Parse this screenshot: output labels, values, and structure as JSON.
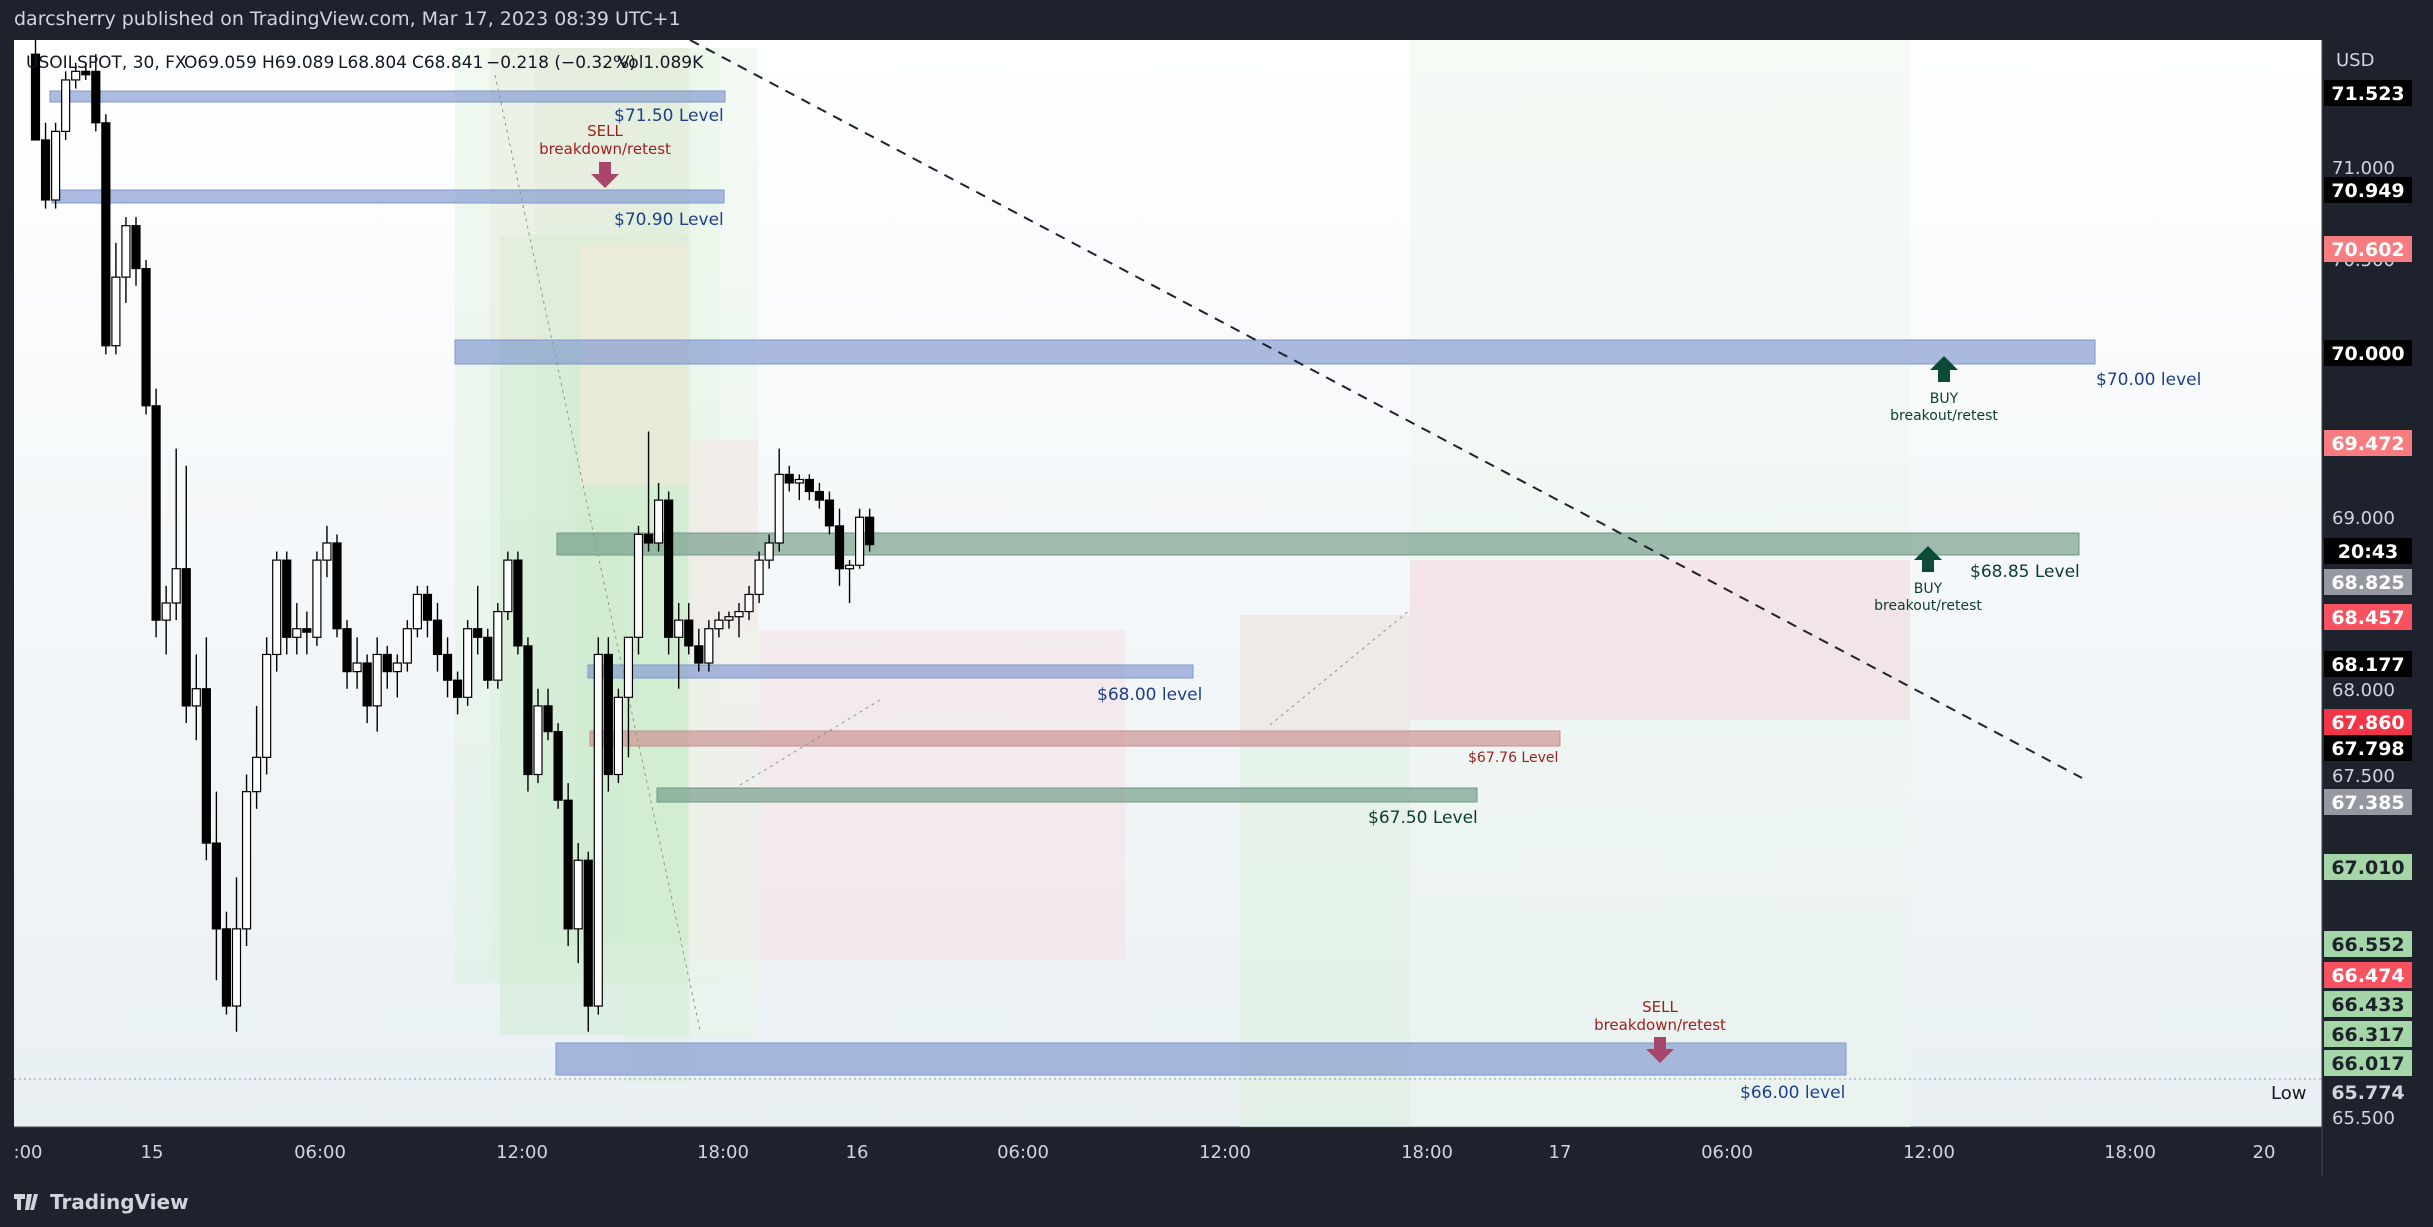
{
  "header": {
    "published_text": "darcsherry published on TradingView.com, Mar 17, 2023 08:39 UTC+1",
    "legend_symbol": "USOILSPOT, 30, FX",
    "legend_o": "O69.059",
    "legend_h": "H69.089",
    "legend_l": "L68.804",
    "legend_c": "C68.841",
    "legend_change": "−0.218 (−0.32%)",
    "legend_vol": "Vol1.089K"
  },
  "footer": {
    "brand": "TradingView"
  },
  "axis": {
    "currency": "USD",
    "low_label": "Low",
    "price_ticks": [
      "71.000",
      "70.500",
      "69.000",
      "68.000",
      "67.500",
      "65.500"
    ],
    "time_ticks": [
      ":00",
      "15",
      "06:00",
      "12:00",
      "18:00",
      "16",
      "06:00",
      "12:00",
      "18:00",
      "17",
      "06:00",
      "12:00",
      "18:00",
      "20"
    ]
  },
  "colors": {
    "background": "#ffffff",
    "axis_bg": "#1e222d",
    "blue_zone": "#7f97cf",
    "green_zone": "#6f9984",
    "red_zone": "#c98e8e",
    "label_blue": "#1d3f8b",
    "label_green": "#0d3d2c",
    "label_red": "#9d1e1e",
    "buy_arrow": "#0d4a38",
    "sell_arrow": "#a8476b"
  },
  "annotations": {
    "lvl_7150": "$71.50 Level",
    "lvl_7090": "$70.90 Level",
    "lvl_7000": "$70.00 level",
    "lvl_6885": "$68.85 Level",
    "lvl_6800": "$68.00 level",
    "lvl_6776": "$67.76 Level",
    "lvl_6750": "$67.50 Level",
    "lvl_6600": "$66.00 level",
    "sell1_a": "SELL",
    "sell1_b": "breakdown/retest",
    "sell2_a": "SELL",
    "sell2_b": "breakdown/retest",
    "buy1_a": "BUY",
    "buy1_b": "breakout/retest",
    "buy2_a": "BUY",
    "buy2_b": "breakout/retest"
  },
  "chart_data": {
    "type": "candlestick",
    "symbol": "USOILSPOT",
    "interval": "30",
    "ylim": [
      65.5,
      71.6
    ],
    "grid": false,
    "current_price": 68.841,
    "countdown": "20:43",
    "price_badges": [
      {
        "value": "71.523",
        "bg": "#000000",
        "fg": "#ffffff"
      },
      {
        "value": "70.949",
        "bg": "#000000",
        "fg": "#ffffff"
      },
      {
        "value": "70.602",
        "bg": "#f77c80",
        "fg": "#ffffff"
      },
      {
        "value": "70.000",
        "bg": "#000000",
        "fg": "#ffffff"
      },
      {
        "value": "69.472",
        "bg": "#f77c80",
        "fg": "#ffffff"
      },
      {
        "value": "68.825",
        "bg": "#9598a1",
        "fg": "#ffffff"
      },
      {
        "value": "68.457",
        "bg": "#f7525f",
        "fg": "#ffffff"
      },
      {
        "value": "68.177",
        "bg": "#000000",
        "fg": "#ffffff"
      },
      {
        "value": "67.860",
        "bg": "#f23645",
        "fg": "#ffffff"
      },
      {
        "value": "67.798",
        "bg": "#000000",
        "fg": "#ffffff"
      },
      {
        "value": "67.385",
        "bg": "#9598a1",
        "fg": "#ffffff"
      },
      {
        "value": "67.010",
        "bg": "#a5d6a7",
        "fg": "#1e222d"
      },
      {
        "value": "66.552",
        "bg": "#a5d6a7",
        "fg": "#1e222d"
      },
      {
        "value": "66.474",
        "bg": "#f7525f",
        "fg": "#ffffff"
      },
      {
        "value": "66.433",
        "bg": "#a5d6a7",
        "fg": "#1e222d"
      },
      {
        "value": "66.317",
        "bg": "#a5d6a7",
        "fg": "#1e222d"
      },
      {
        "value": "66.017",
        "bg": "#a5d6a7",
        "fg": "#1e222d"
      },
      {
        "value": "65.774",
        "bg": "#1e222d",
        "fg": "#d1d4dc"
      }
    ],
    "levels": [
      71.5,
      70.9,
      70.0,
      68.85,
      68.0,
      67.76,
      67.5,
      66.0
    ],
    "candles": [
      {
        "o": 71.7,
        "h": 71.8,
        "l": 71.2,
        "c": 71.2
      },
      {
        "o": 71.2,
        "h": 71.3,
        "l": 70.8,
        "c": 70.85
      },
      {
        "o": 70.85,
        "h": 71.3,
        "l": 70.8,
        "c": 71.25
      },
      {
        "o": 71.25,
        "h": 71.6,
        "l": 71.2,
        "c": 71.55
      },
      {
        "o": 71.55,
        "h": 71.65,
        "l": 71.5,
        "c": 71.6
      },
      {
        "o": 71.6,
        "h": 71.65,
        "l": 71.55,
        "c": 71.58
      },
      {
        "o": 71.6,
        "h": 71.7,
        "l": 71.25,
        "c": 71.3
      },
      {
        "o": 71.3,
        "h": 71.35,
        "l": 69.95,
        "c": 70.0
      },
      {
        "o": 70.0,
        "h": 70.6,
        "l": 69.95,
        "c": 70.4
      },
      {
        "o": 70.4,
        "h": 70.75,
        "l": 70.25,
        "c": 70.7
      },
      {
        "o": 70.7,
        "h": 70.75,
        "l": 70.35,
        "c": 70.45
      },
      {
        "o": 70.45,
        "h": 70.5,
        "l": 69.6,
        "c": 69.65
      },
      {
        "o": 69.65,
        "h": 69.75,
        "l": 68.3,
        "c": 68.4
      },
      {
        "o": 68.4,
        "h": 68.6,
        "l": 68.2,
        "c": 68.5
      },
      {
        "o": 68.5,
        "h": 69.4,
        "l": 68.4,
        "c": 68.7
      },
      {
        "o": 68.7,
        "h": 69.3,
        "l": 67.8,
        "c": 67.9
      },
      {
        "o": 67.9,
        "h": 68.2,
        "l": 67.7,
        "c": 68.0
      },
      {
        "o": 68.0,
        "h": 68.3,
        "l": 67.0,
        "c": 67.1
      },
      {
        "o": 67.1,
        "h": 67.4,
        "l": 66.3,
        "c": 66.6
      },
      {
        "o": 66.6,
        "h": 66.7,
        "l": 66.1,
        "c": 66.15
      },
      {
        "o": 66.15,
        "h": 66.9,
        "l": 66.0,
        "c": 66.6
      },
      {
        "o": 66.6,
        "h": 67.5,
        "l": 66.5,
        "c": 67.4
      },
      {
        "o": 67.4,
        "h": 67.9,
        "l": 67.3,
        "c": 67.6
      },
      {
        "o": 67.6,
        "h": 68.3,
        "l": 67.5,
        "c": 68.2
      },
      {
        "o": 68.2,
        "h": 68.8,
        "l": 68.1,
        "c": 68.75
      },
      {
        "o": 68.75,
        "h": 68.8,
        "l": 68.2,
        "c": 68.3
      },
      {
        "o": 68.3,
        "h": 68.5,
        "l": 68.2,
        "c": 68.35
      },
      {
        "o": 68.35,
        "h": 68.45,
        "l": 68.2,
        "c": 68.33
      },
      {
        "o": 68.3,
        "h": 68.8,
        "l": 68.25,
        "c": 68.75
      },
      {
        "o": 68.75,
        "h": 68.95,
        "l": 68.65,
        "c": 68.85
      },
      {
        "o": 68.85,
        "h": 68.9,
        "l": 68.3,
        "c": 68.35
      },
      {
        "o": 68.35,
        "h": 68.4,
        "l": 68.0,
        "c": 68.1
      },
      {
        "o": 68.1,
        "h": 68.3,
        "l": 68.0,
        "c": 68.15
      },
      {
        "o": 68.15,
        "h": 68.2,
        "l": 67.8,
        "c": 67.9
      },
      {
        "o": 67.9,
        "h": 68.3,
        "l": 67.75,
        "c": 68.2
      },
      {
        "o": 68.2,
        "h": 68.25,
        "l": 68.0,
        "c": 68.1
      },
      {
        "o": 68.1,
        "h": 68.2,
        "l": 67.95,
        "c": 68.15
      },
      {
        "o": 68.15,
        "h": 68.4,
        "l": 68.1,
        "c": 68.35
      },
      {
        "o": 68.35,
        "h": 68.6,
        "l": 68.3,
        "c": 68.55
      },
      {
        "o": 68.55,
        "h": 68.6,
        "l": 68.3,
        "c": 68.4
      },
      {
        "o": 68.4,
        "h": 68.5,
        "l": 68.1,
        "c": 68.2
      },
      {
        "o": 68.2,
        "h": 68.3,
        "l": 67.95,
        "c": 68.05
      },
      {
        "o": 68.05,
        "h": 68.1,
        "l": 67.85,
        "c": 67.95
      },
      {
        "o": 67.95,
        "h": 68.4,
        "l": 67.9,
        "c": 68.35
      },
      {
        "o": 68.35,
        "h": 68.6,
        "l": 68.2,
        "c": 68.3
      },
      {
        "o": 68.3,
        "h": 68.35,
        "l": 68.0,
        "c": 68.05
      },
      {
        "o": 68.05,
        "h": 68.5,
        "l": 68.0,
        "c": 68.45
      },
      {
        "o": 68.45,
        "h": 68.8,
        "l": 68.4,
        "c": 68.75
      },
      {
        "o": 68.75,
        "h": 68.8,
        "l": 68.2,
        "c": 68.25
      },
      {
        "o": 68.25,
        "h": 68.3,
        "l": 67.4,
        "c": 67.5
      },
      {
        "o": 67.5,
        "h": 68.0,
        "l": 67.45,
        "c": 67.9
      },
      {
        "o": 67.9,
        "h": 68.0,
        "l": 67.7,
        "c": 67.75
      },
      {
        "o": 67.75,
        "h": 67.8,
        "l": 67.3,
        "c": 67.35
      },
      {
        "o": 67.35,
        "h": 67.45,
        "l": 66.5,
        "c": 66.6
      },
      {
        "o": 66.6,
        "h": 67.1,
        "l": 66.4,
        "c": 67.0
      },
      {
        "o": 67.0,
        "h": 67.05,
        "l": 66.0,
        "c": 66.15
      },
      {
        "o": 66.15,
        "h": 68.3,
        "l": 66.1,
        "c": 68.2
      },
      {
        "o": 68.2,
        "h": 68.3,
        "l": 67.4,
        "c": 67.5
      },
      {
        "o": 67.5,
        "h": 68.0,
        "l": 67.45,
        "c": 67.95
      },
      {
        "o": 67.95,
        "h": 68.3,
        "l": 67.6,
        "c": 68.3
      },
      {
        "o": 68.3,
        "h": 68.95,
        "l": 68.2,
        "c": 68.9
      },
      {
        "o": 68.9,
        "h": 69.5,
        "l": 68.8,
        "c": 68.85
      },
      {
        "o": 68.85,
        "h": 69.2,
        "l": 68.8,
        "c": 69.1
      },
      {
        "o": 69.1,
        "h": 69.15,
        "l": 68.2,
        "c": 68.3
      },
      {
        "o": 68.3,
        "h": 68.5,
        "l": 68.0,
        "c": 68.4
      },
      {
        "o": 68.4,
        "h": 68.5,
        "l": 68.2,
        "c": 68.25
      },
      {
        "o": 68.25,
        "h": 68.35,
        "l": 68.1,
        "c": 68.15
      },
      {
        "o": 68.15,
        "h": 68.4,
        "l": 68.1,
        "c": 68.35
      },
      {
        "o": 68.35,
        "h": 68.45,
        "l": 68.3,
        "c": 68.4
      },
      {
        "o": 68.4,
        "h": 68.45,
        "l": 68.35,
        "c": 68.42
      },
      {
        "o": 68.42,
        "h": 68.5,
        "l": 68.3,
        "c": 68.45
      },
      {
        "o": 68.45,
        "h": 68.6,
        "l": 68.4,
        "c": 68.55
      },
      {
        "o": 68.55,
        "h": 68.8,
        "l": 68.5,
        "c": 68.75
      },
      {
        "o": 68.75,
        "h": 68.9,
        "l": 68.7,
        "c": 68.85
      },
      {
        "o": 68.85,
        "h": 69.4,
        "l": 68.8,
        "c": 69.25
      },
      {
        "o": 69.25,
        "h": 69.3,
        "l": 69.15,
        "c": 69.2
      },
      {
        "o": 69.2,
        "h": 69.25,
        "l": 69.1,
        "c": 69.22
      },
      {
        "o": 69.22,
        "h": 69.25,
        "l": 69.1,
        "c": 69.15
      },
      {
        "o": 69.15,
        "h": 69.2,
        "l": 69.05,
        "c": 69.1
      },
      {
        "o": 69.1,
        "h": 69.15,
        "l": 68.9,
        "c": 68.95
      },
      {
        "o": 68.95,
        "h": 69.05,
        "l": 68.6,
        "c": 68.7
      },
      {
        "o": 68.7,
        "h": 68.75,
        "l": 68.5,
        "c": 68.72
      },
      {
        "o": 68.72,
        "h": 69.05,
        "l": 68.7,
        "c": 69.0
      },
      {
        "o": 69.0,
        "h": 69.05,
        "l": 68.8,
        "c": 68.84
      }
    ]
  }
}
